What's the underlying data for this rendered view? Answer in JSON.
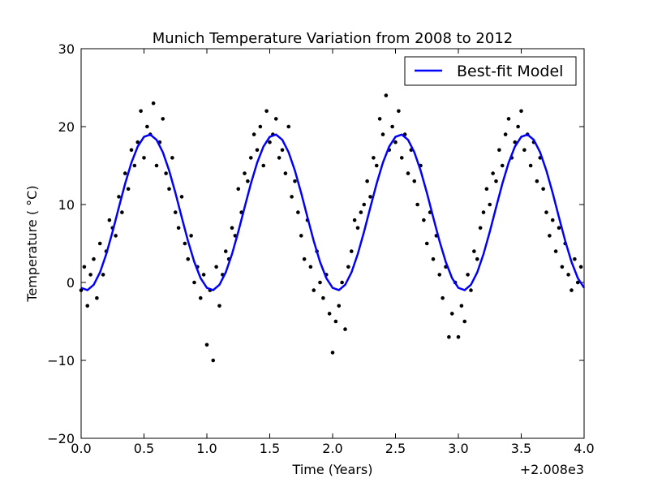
{
  "chart_data": {
    "type": "scatter",
    "title": "Munich Temperature Variation from 2008 to 2012",
    "x_label": "Time (Years)",
    "y_label": "Temperature ( °C)",
    "x_offset_label": "+2.008e3",
    "xlim": [
      0,
      4
    ],
    "ylim": [
      -20,
      30
    ],
    "xticks": [
      {
        "value": 0,
        "label": "0.0"
      },
      {
        "value": 0.5,
        "label": "0.5"
      },
      {
        "value": 1,
        "label": "1.0"
      },
      {
        "value": 1.5,
        "label": "1.5"
      },
      {
        "value": 2,
        "label": "2.0"
      },
      {
        "value": 2.5,
        "label": "2.5"
      },
      {
        "value": 3,
        "label": "3.0"
      },
      {
        "value": 3.5,
        "label": "3.5"
      },
      {
        "value": 4,
        "label": "4.0"
      }
    ],
    "yticks": [
      {
        "value": -20,
        "label": "−20"
      },
      {
        "value": -10,
        "label": "−10"
      },
      0,
      10,
      20,
      30
    ],
    "legend_location": "upper right",
    "series": [
      {
        "name": "Best-fit Model",
        "type": "line",
        "color": "#0000ff",
        "x": [
          0,
          0.05,
          0.1,
          0.15,
          0.2,
          0.25,
          0.3,
          0.35,
          0.4,
          0.45,
          0.5,
          0.55,
          0.6,
          0.65,
          0.7,
          0.75,
          0.8,
          0.85,
          0.9,
          0.95,
          1,
          1.05,
          1.1,
          1.15,
          1.2,
          1.25,
          1.3,
          1.35,
          1.4,
          1.45,
          1.5,
          1.55,
          1.6,
          1.65,
          1.7,
          1.75,
          1.8,
          1.85,
          1.9,
          1.95,
          2,
          2.05,
          2.1,
          2.15,
          2.2,
          2.25,
          2.3,
          2.35,
          2.4,
          2.45,
          2.5,
          2.55,
          2.6,
          2.65,
          2.7,
          2.75,
          2.8,
          2.85,
          2.9,
          2.95,
          3,
          3.05,
          3.1,
          3.15,
          3.2,
          3.25,
          3.3,
          3.35,
          3.4,
          3.45,
          3.5,
          3.55,
          3.6,
          3.65,
          3.7,
          3.75,
          3.8,
          3.85,
          3.9,
          3.95,
          4
        ],
        "values": [
          -0.69,
          -0.98,
          -0.3,
          1.29,
          3.64,
          6.51,
          9.63,
          12.68,
          15.37,
          17.44,
          18.69,
          18.98,
          18.3,
          16.71,
          14.36,
          11.49,
          8.37,
          5.32,
          2.63,
          0.56,
          -0.69,
          -0.98,
          -0.3,
          1.29,
          3.64,
          6.51,
          9.63,
          12.68,
          15.37,
          17.44,
          18.69,
          18.98,
          18.3,
          16.71,
          14.36,
          11.49,
          8.37,
          5.32,
          2.63,
          0.56,
          -0.69,
          -0.98,
          -0.3,
          1.29,
          3.64,
          6.51,
          9.63,
          12.68,
          15.37,
          17.44,
          18.69,
          18.98,
          18.3,
          16.71,
          14.36,
          11.49,
          8.37,
          5.32,
          2.63,
          0.56,
          -0.69,
          -0.98,
          -0.3,
          1.29,
          3.64,
          6.51,
          9.63,
          12.68,
          15.37,
          17.44,
          18.69,
          18.98,
          18.3,
          16.71,
          14.36,
          11.49,
          8.37,
          5.32,
          2.63,
          0.56,
          -0.69
        ]
      },
      {
        "type": "scatter",
        "color": "#000000",
        "x": [
          0,
          0.025,
          0.05,
          0.075,
          0.1,
          0.125,
          0.15,
          0.175,
          0.2,
          0.225,
          0.25,
          0.275,
          0.3,
          0.325,
          0.35,
          0.375,
          0.4,
          0.425,
          0.45,
          0.475,
          0.5,
          0.525,
          0.55,
          0.575,
          0.6,
          0.625,
          0.65,
          0.675,
          0.7,
          0.725,
          0.75,
          0.775,
          0.8,
          0.825,
          0.85,
          0.875,
          0.9,
          0.925,
          0.95,
          0.975,
          1,
          1.025,
          1.05,
          1.075,
          1.1,
          1.125,
          1.15,
          1.175,
          1.2,
          1.225,
          1.25,
          1.275,
          1.3,
          1.325,
          1.35,
          1.375,
          1.4,
          1.425,
          1.45,
          1.475,
          1.5,
          1.525,
          1.55,
          1.575,
          1.6,
          1.625,
          1.65,
          1.675,
          1.7,
          1.725,
          1.75,
          1.775,
          1.8,
          1.825,
          1.85,
          1.875,
          1.9,
          1.925,
          1.95,
          1.975,
          2,
          2.025,
          2.05,
          2.075,
          2.1,
          2.125,
          2.15,
          2.175,
          2.2,
          2.225,
          2.25,
          2.275,
          2.3,
          2.325,
          2.35,
          2.375,
          2.4,
          2.425,
          2.45,
          2.475,
          2.5,
          2.525,
          2.55,
          2.575,
          2.6,
          2.625,
          2.65,
          2.675,
          2.7,
          2.725,
          2.75,
          2.775,
          2.8,
          2.825,
          2.85,
          2.875,
          2.9,
          2.925,
          2.95,
          2.975,
          3,
          3.025,
          3.05,
          3.075,
          3.1,
          3.125,
          3.15,
          3.175,
          3.2,
          3.225,
          3.25,
          3.275,
          3.3,
          3.325,
          3.35,
          3.375,
          3.4,
          3.425,
          3.45,
          3.475,
          3.5,
          3.525,
          3.55,
          3.575,
          3.6,
          3.625,
          3.65,
          3.675,
          3.7,
          3.725,
          3.75,
          3.775,
          3.8,
          3.825,
          3.85,
          3.875,
          3.9,
          3.925,
          3.95,
          3.975
        ],
        "values": [
          -1,
          2,
          -3,
          1,
          3,
          -2,
          5,
          1,
          4,
          8,
          7,
          6,
          11,
          9,
          14,
          12,
          17,
          15,
          18,
          22,
          16,
          20,
          19,
          23,
          15,
          18,
          21,
          14,
          12,
          16,
          9,
          7,
          11,
          5,
          3,
          6,
          0,
          2,
          -2,
          1,
          -8,
          -1,
          -10,
          2,
          -3,
          1,
          4,
          3,
          7,
          6,
          12,
          9,
          14,
          13,
          16,
          19,
          17,
          20,
          15,
          22,
          18,
          19,
          21,
          16,
          17,
          14,
          20,
          11,
          13,
          9,
          6,
          3,
          8,
          2,
          -1,
          4,
          0,
          -2,
          1,
          -4,
          -9,
          -5,
          -3,
          0,
          -6,
          2,
          4,
          8,
          7,
          9,
          10,
          13,
          11,
          16,
          15,
          21,
          19,
          24,
          17,
          20,
          18,
          22,
          16,
          19,
          14,
          17,
          13,
          10,
          15,
          8,
          5,
          9,
          3,
          6,
          1,
          -2,
          2,
          -7,
          -4,
          0,
          -7,
          -3,
          -5,
          1,
          -1,
          4,
          3,
          7,
          9,
          12,
          10,
          14,
          13,
          17,
          15,
          19,
          21,
          16,
          18,
          20,
          22,
          17,
          19,
          15,
          18,
          13,
          16,
          12,
          9,
          6,
          8,
          4,
          7,
          2,
          5,
          1,
          -1,
          3,
          0,
          2
        ]
      }
    ]
  }
}
